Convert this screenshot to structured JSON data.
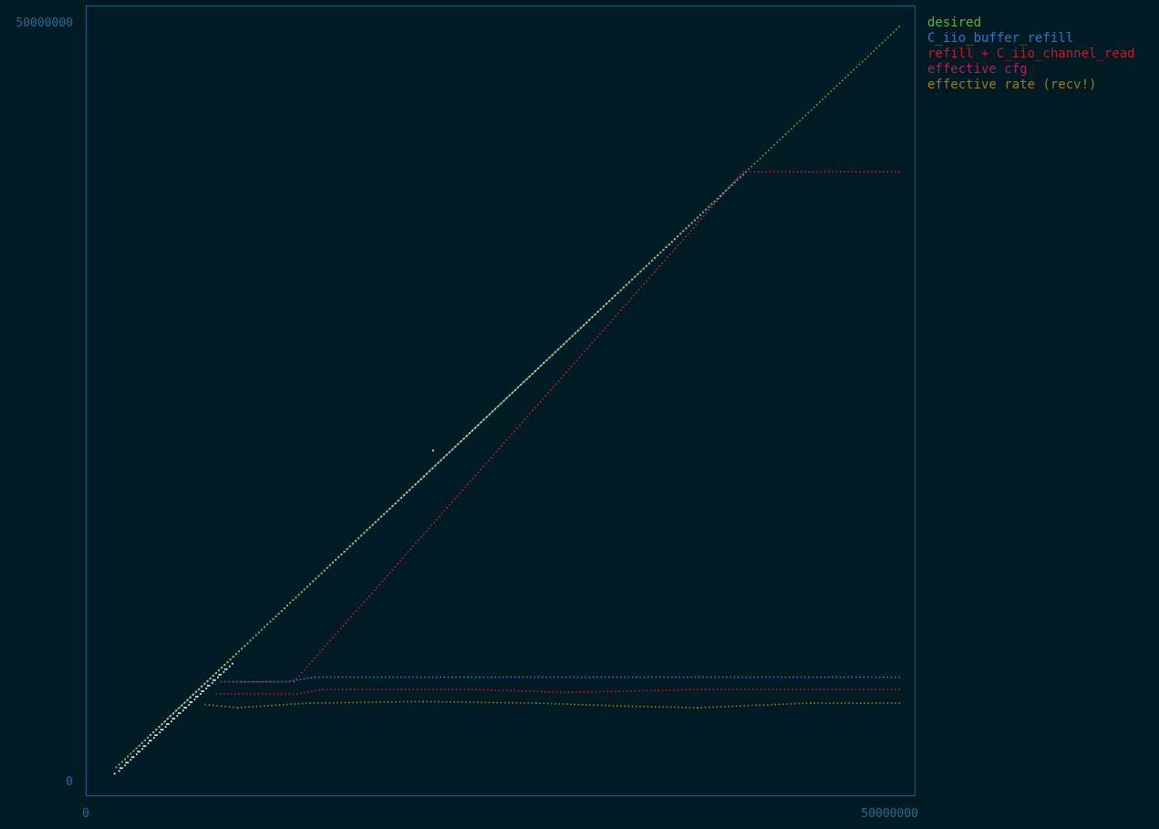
{
  "chart_data": {
    "type": "scatter",
    "xlim": [
      0,
      50000000
    ],
    "ylim": [
      0,
      50000000
    ],
    "x_ticks": [
      "0",
      "50000000"
    ],
    "y_ticks": [
      "0",
      "50000000"
    ],
    "legend_position": "top-right-outside",
    "grid": false,
    "colors": {
      "background": "#001b24",
      "frame": "#0f5f80",
      "tick_text": "#1d6f8e",
      "measured_points": "#dfe8e8"
    },
    "series": [
      {
        "name": "desired",
        "color": "#5fb03a",
        "x": [
          1000000,
          5000000,
          10000000,
          20000000,
          30000000,
          40000000,
          49500000
        ],
        "y": [
          1000000,
          5000000,
          10000000,
          20000000,
          30000000,
          40000000,
          49500000
        ]
      },
      {
        "name": "C_iio_buffer_refill",
        "color": "#2f78c9",
        "x": [
          7500000,
          11500000,
          13300000,
          49500000
        ],
        "y": [
          6600000,
          6600000,
          6900000,
          6900000
        ]
      },
      {
        "name": "refill + C_iio_channel_read",
        "color": "#c4192d",
        "x": [
          7200000,
          8600000,
          12200000,
          13800000,
          22800000,
          29000000,
          37500000,
          49500000
        ],
        "y": [
          5800000,
          5800000,
          5800000,
          6100000,
          6100000,
          5900000,
          6100000,
          6100000
        ]
      },
      {
        "name": "effective cfg",
        "color": "#c01a62",
        "x": [
          7500000,
          12000000,
          39800000,
          49500000
        ],
        "y": [
          6600000,
          6600000,
          40000000,
          40000000
        ]
      },
      {
        "name": "effective rate (recv!)",
        "color": "#9a7e0b",
        "x": [
          6500000,
          8500000,
          13000000,
          20000000,
          27000000,
          32500000,
          37000000,
          44000000,
          49500000
        ],
        "y": [
          5100000,
          4900000,
          5200000,
          5300000,
          5200000,
          5000000,
          4900000,
          5200000,
          5200000
        ]
      }
    ]
  }
}
